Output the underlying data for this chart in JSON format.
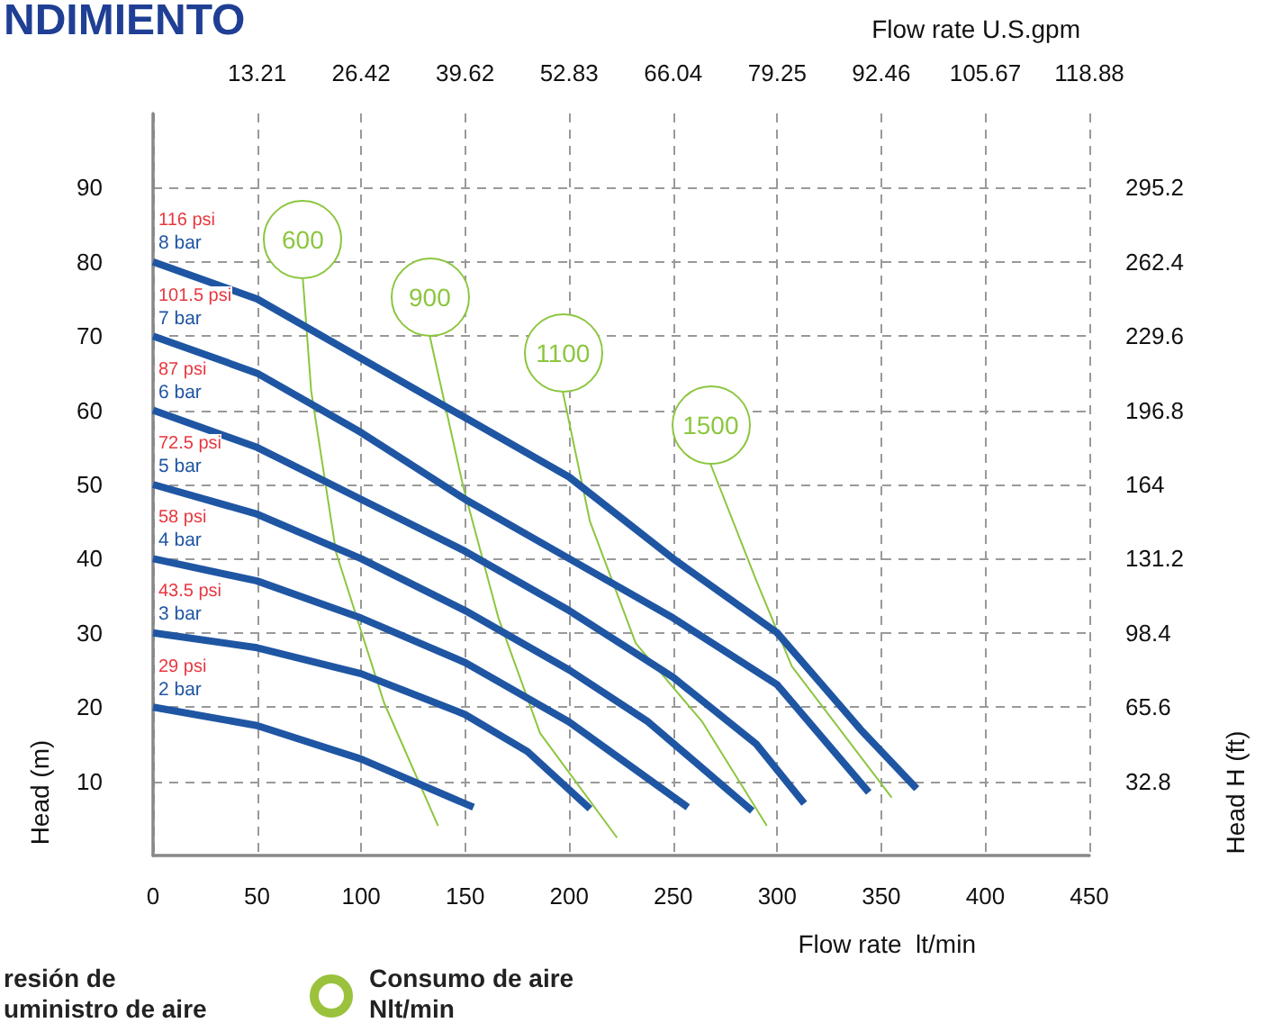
{
  "chart_data": {
    "type": "line",
    "title": "NDIMIENTO",
    "xlabel": "Flow rate  lt/min",
    "x2label": "Flow rate U.S.gpm",
    "ylabel": "Head (m)",
    "y2label": "Head H (ft)",
    "xlim": [
      0,
      450
    ],
    "xticks": [
      0,
      50,
      100,
      150,
      200,
      250,
      300,
      350,
      400,
      450
    ],
    "x2lim": [
      0,
      118.88
    ],
    "x2ticks": [
      13.21,
      26.42,
      39.62,
      52.83,
      66.04,
      79.25,
      92.46,
      105.67,
      118.88
    ],
    "ylim": [
      0,
      100
    ],
    "yticks": [
      10,
      20,
      30,
      40,
      50,
      60,
      70,
      80,
      90
    ],
    "y2lim": [
      0,
      328
    ],
    "y2ticks": [
      32.8,
      65.6,
      98.4,
      131.2,
      164,
      196.8,
      229.6,
      262.4,
      295.2
    ],
    "grid": true,
    "marker": "none",
    "line_style": "solid",
    "series": [
      {
        "name": "8 bar",
        "color": "#1f56a3",
        "x": [
          0,
          50,
          100,
          150,
          200,
          250,
          300,
          340,
          367
        ],
        "values": [
          80,
          75,
          67,
          59,
          51,
          40,
          30,
          17,
          9
        ]
      },
      {
        "name": "7 bar",
        "color": "#1f56a3",
        "x": [
          0,
          50,
          100,
          150,
          200,
          250,
          300,
          344
        ],
        "values": [
          70,
          65,
          57,
          48,
          40,
          32,
          23,
          8.5
        ]
      },
      {
        "name": "6 bar",
        "color": "#1f56a3",
        "x": [
          0,
          50,
          100,
          150,
          200,
          250,
          290,
          313
        ],
        "values": [
          60,
          55,
          48,
          41,
          33,
          24,
          15,
          7
        ]
      },
      {
        "name": "5 bar",
        "color": "#1f56a3",
        "x": [
          0,
          50,
          100,
          150,
          200,
          238,
          288
        ],
        "values": [
          50,
          46,
          40,
          33,
          25,
          18,
          6
        ]
      },
      {
        "name": "4 bar",
        "color": "#1f56a3",
        "x": [
          0,
          50,
          100,
          150,
          200,
          257
        ],
        "values": [
          40,
          37,
          32,
          26,
          18,
          6.5
        ]
      },
      {
        "name": "3 bar",
        "color": "#1f56a3",
        "x": [
          0,
          50,
          100,
          150,
          180,
          210
        ],
        "values": [
          30,
          28,
          24.5,
          19,
          14,
          6.3
        ]
      },
      {
        "name": "2 bar",
        "color": "#1f56a3",
        "x": [
          0,
          50,
          100,
          154
        ],
        "values": [
          20,
          17.5,
          13,
          6.5
        ]
      },
      {
        "name": "600",
        "color": "#8cc63f",
        "x": [
          72,
          76,
          88,
          111,
          137
        ],
        "values": [
          77.7,
          62.6,
          40.8,
          20.6,
          4
        ]
      },
      {
        "name": "900",
        "color": "#8cc63f",
        "x": [
          133,
          149,
          166,
          186,
          223
        ],
        "values": [
          70,
          49.8,
          32,
          16.5,
          2.4
        ]
      },
      {
        "name": "1100",
        "color": "#8cc63f",
        "x": [
          197,
          210,
          232,
          264,
          295
        ],
        "values": [
          62.4,
          45,
          28.6,
          18,
          4
        ]
      },
      {
        "name": "1500",
        "color": "#8cc63f",
        "x": [
          268,
          290,
          307,
          355
        ],
        "values": [
          52.7,
          37,
          25.5,
          7.8
        ]
      }
    ],
    "annotations": [
      "116 psi",
      "101.5 psi",
      "87 psi",
      "72.5 psi",
      "58 psi",
      "43.5 psi",
      "29 psi",
      "resión de\nuministro de aire",
      "Consumo de aire\nNlt/min"
    ]
  }
}
